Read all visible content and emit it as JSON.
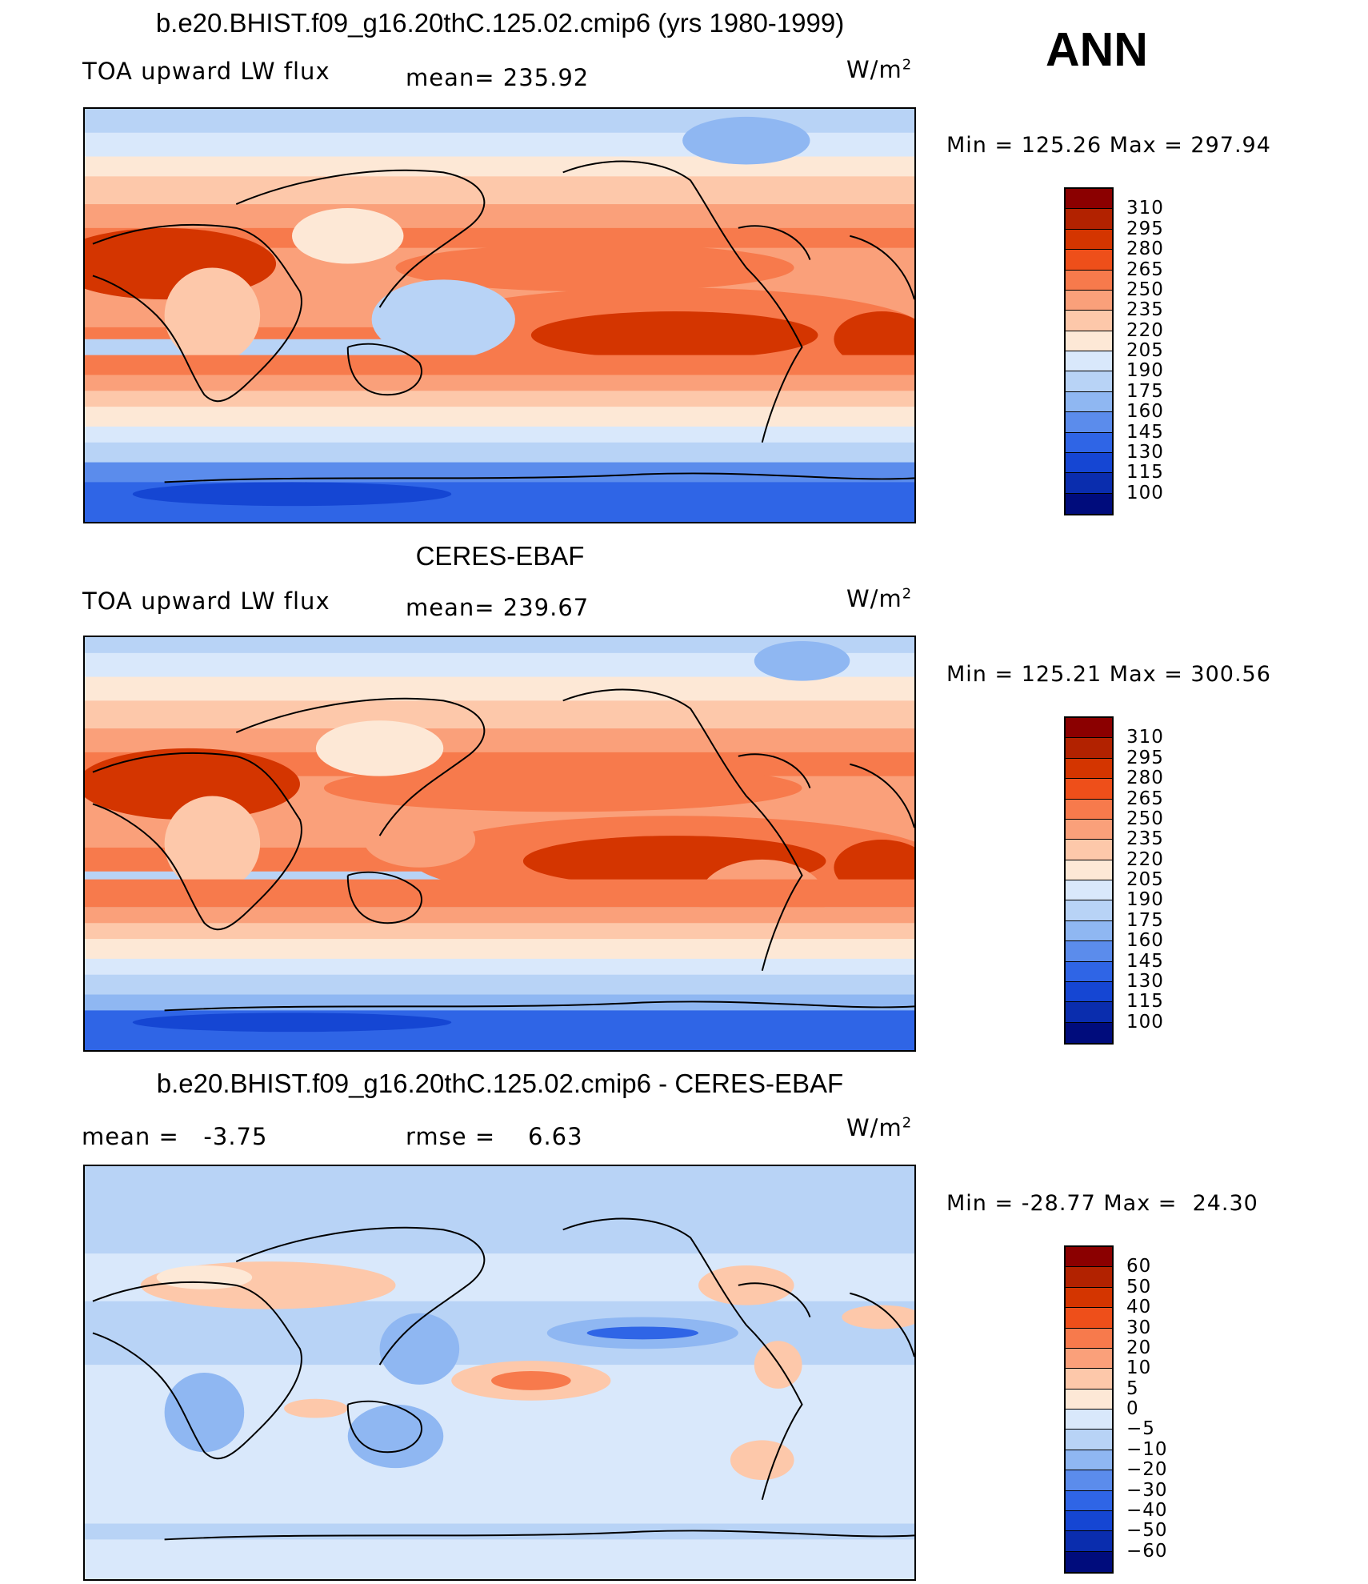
{
  "season": "ANN",
  "units": "W/m",
  "units_sup": "2",
  "panels": [
    {
      "title": "b.e20.BHIST.f09_g16.20thC.125.02.cmip6 (yrs 1980-1999)",
      "left_label": "TOA upward LW flux",
      "center_label": "mean=",
      "center_value": "235.92",
      "min_label": "Min",
      "min_value": "125.26",
      "max_label": "Max",
      "max_value": "297.94",
      "colorbar_labels": [
        "310",
        "295",
        "280",
        "265",
        "250",
        "235",
        "220",
        "205",
        "190",
        "175",
        "160",
        "145",
        "130",
        "115",
        "100"
      ]
    },
    {
      "title": "CERES-EBAF",
      "left_label": "TOA upward LW flux",
      "center_label": "mean=",
      "center_value": "239.67",
      "min_label": "Min",
      "min_value": "125.21",
      "max_label": "Max",
      "max_value": "300.56",
      "colorbar_labels": [
        "310",
        "295",
        "280",
        "265",
        "250",
        "235",
        "220",
        "205",
        "190",
        "175",
        "160",
        "145",
        "130",
        "115",
        "100"
      ]
    },
    {
      "title": "b.e20.BHIST.f09_g16.20thC.125.02.cmip6 - CERES-EBAF",
      "left_label": "mean =",
      "left_value": "-3.75",
      "center_label": "rmse =",
      "center_value": "6.63",
      "min_label": "Min",
      "min_value": "-28.77",
      "max_label": "Max",
      "max_value": "24.30",
      "colorbar_labels": [
        "60",
        "50",
        "40",
        "30",
        "20",
        "10",
        "5",
        "0",
        "-5",
        "-10",
        "-20",
        "-30",
        "-40",
        "-50",
        "-60"
      ]
    }
  ],
  "colors": {
    "abs_scale": [
      "#8b0000",
      "#b22200",
      "#d43500",
      "#ee4f1a",
      "#f77a4c",
      "#faa07a",
      "#fdc8aa",
      "#fde8d6",
      "#d9e8fb",
      "#b8d3f6",
      "#8fb7f2",
      "#5b8cec",
      "#2f65e6",
      "#1546d3",
      "#0a2dae",
      "#000c7c"
    ],
    "diff_scale": [
      "#8b0000",
      "#b22200",
      "#d43500",
      "#ee4f1a",
      "#f77a4c",
      "#faa07a",
      "#fdc8aa",
      "#fde8d6",
      "#d9e8fb",
      "#b8d3f6",
      "#8fb7f2",
      "#5b8cec",
      "#2f65e6",
      "#1546d3",
      "#0a2dae",
      "#000c7c"
    ]
  }
}
